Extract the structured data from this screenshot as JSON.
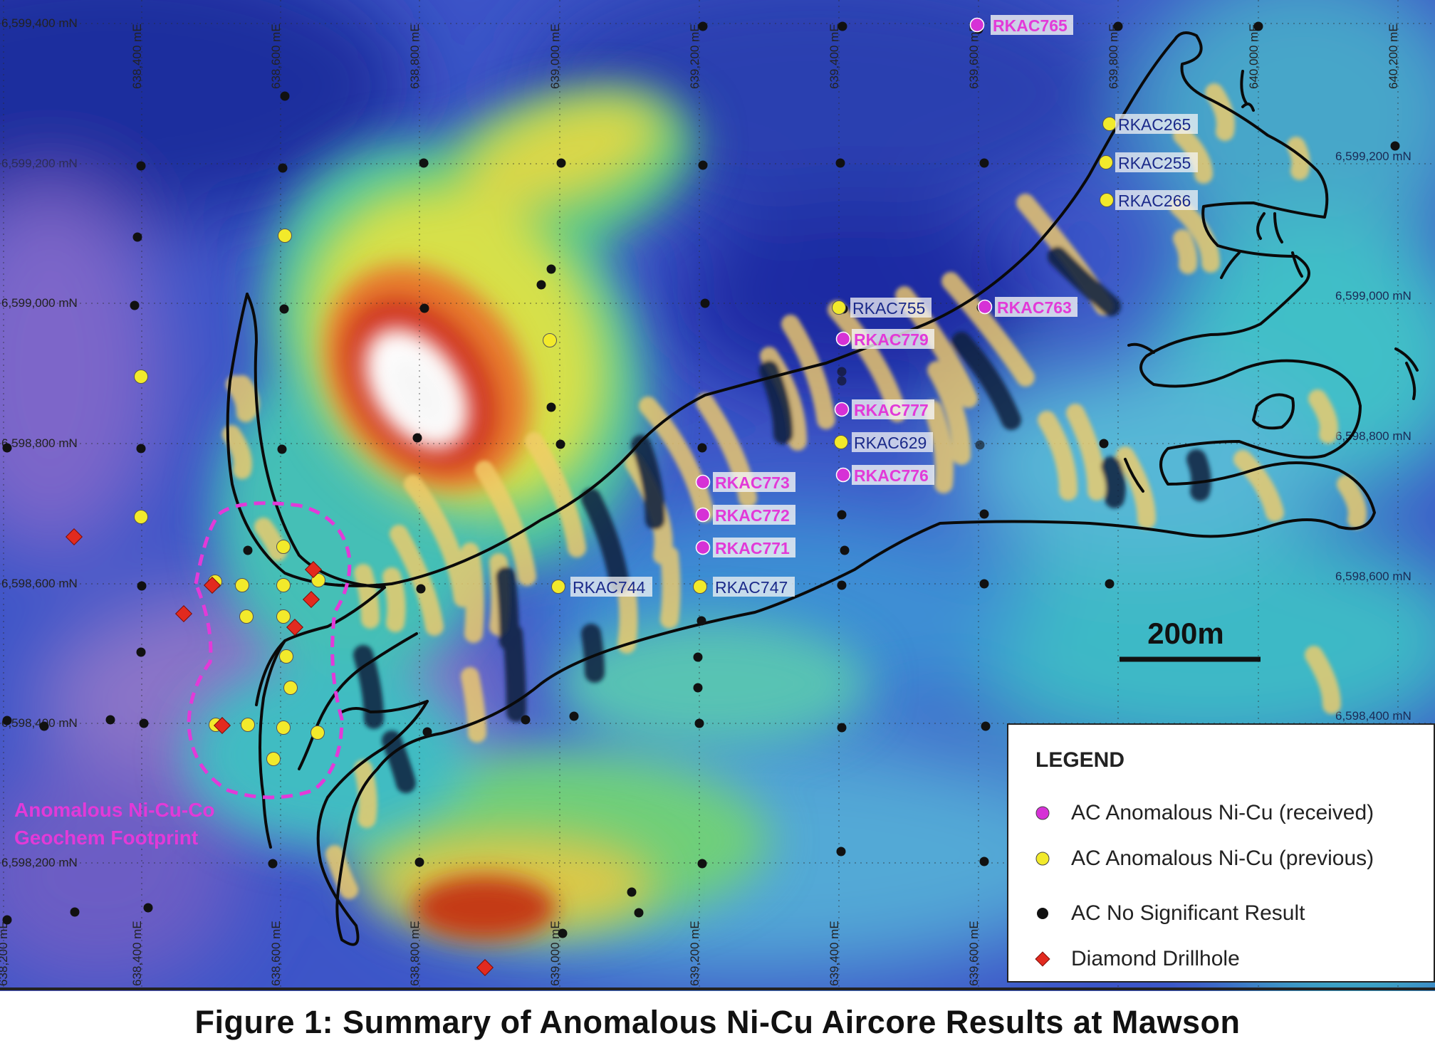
{
  "caption": "Figure 1:  Summary of Anomalous Ni-Cu Aircore Results at Mawson",
  "scale_bar": {
    "label": "200m",
    "distance_m": 200
  },
  "legend": {
    "title": "LEGEND",
    "items": [
      {
        "label": "AC Anomalous Ni-Cu (received)",
        "symbol": "circle",
        "color": "#d631d6"
      },
      {
        "label": "AC Anomalous Ni-Cu (previous)",
        "symbol": "circle",
        "color": "#f2ea2b"
      },
      {
        "label": "AC No Significant Result",
        "symbol": "circle",
        "color": "#111111"
      },
      {
        "label": "Diamond Drillhole",
        "symbol": "diamond",
        "color": "#e22a1f"
      }
    ]
  },
  "footprint": {
    "line1": "Anomalous Ni-Cu-Co",
    "line2": "Geochem Footprint",
    "color": "#e23ad8"
  },
  "grid": {
    "easting_labels": [
      "638,200 mE",
      "638,400 mE",
      "638,600 mE",
      "638,800 mE",
      "639,000 mE",
      "639,200 mE",
      "639,400 mE",
      "639,600 mE",
      "639,800 mE",
      "640,000 mE",
      "640,200 mE"
    ],
    "northing_labels": [
      "6,599,400 mN",
      "6,599,200 mN",
      "6,599,000 mN",
      "6,598,800 mN",
      "6,598,600 mN",
      "6,598,400 mN",
      "6,598,200 mN"
    ]
  },
  "holes_labeled": [
    {
      "id": "RKAC765",
      "type": "received"
    },
    {
      "id": "RKAC265",
      "type": "previous"
    },
    {
      "id": "RKAC255",
      "type": "previous"
    },
    {
      "id": "RKAC266",
      "type": "previous"
    },
    {
      "id": "RKAC755",
      "type": "previous"
    },
    {
      "id": "RKAC763",
      "type": "received"
    },
    {
      "id": "RKAC779",
      "type": "received"
    },
    {
      "id": "RKAC777",
      "type": "received"
    },
    {
      "id": "RKAC629",
      "type": "previous"
    },
    {
      "id": "RKAC776",
      "type": "received"
    },
    {
      "id": "RKAC773",
      "type": "received"
    },
    {
      "id": "RKAC772",
      "type": "received"
    },
    {
      "id": "RKAC771",
      "type": "received"
    },
    {
      "id": "RKAC744",
      "type": "previous"
    },
    {
      "id": "RKAC747",
      "type": "previous"
    }
  ],
  "colors": {
    "received": "#d631d6",
    "previous": "#f2ea2b",
    "no_result": "#111111",
    "diamond": "#e22a1f",
    "received_label": "#e23ad8",
    "previous_label": "#1b2a8a"
  }
}
